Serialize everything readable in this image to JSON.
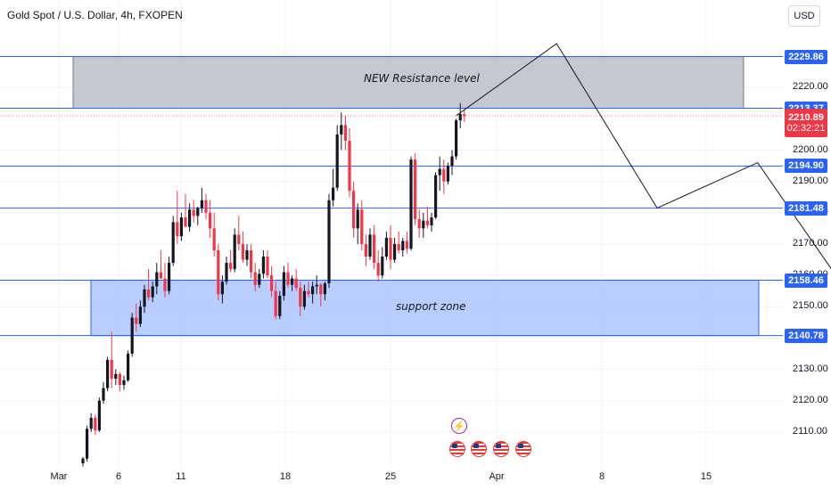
{
  "header": {
    "symbol_title": "Gold Spot / U.S. Dollar, 4h, FXOPEN",
    "currency": "USD"
  },
  "colors": {
    "up": "#131722",
    "down": "#f23645",
    "level_line": "#2962ff",
    "resistance_fill": "#b2b5be",
    "support_fill": "#a8c1ff",
    "current_price": "#f23645",
    "grid": "#f0f3fa"
  },
  "chart_data": {
    "type": "candlestick",
    "title": "Gold Spot / U.S. Dollar, 4h, FXOPEN",
    "ylim": [
      2100,
      2234
    ],
    "y_ticks": [
      "2110.00",
      "2120.00",
      "2130.00",
      "2140.00",
      "2150.00",
      "2160.00",
      "2170.00",
      "2180.00",
      "2190.00",
      "2200.00",
      "2220.00"
    ],
    "x_ticks": [
      "Mar",
      "6",
      "11",
      "18",
      "25",
      "Apr",
      "8",
      "15"
    ],
    "levels": [
      {
        "value": 2229.86,
        "label": "2229.86"
      },
      {
        "value": 2213.37,
        "label": "2213.37"
      },
      {
        "value": 2194.9,
        "label": "2194.90"
      },
      {
        "value": 2181.48,
        "label": "2181.48"
      },
      {
        "value": 2158.46,
        "label": "2158.46"
      },
      {
        "value": 2140.78,
        "label": "2140.78"
      }
    ],
    "current_price": {
      "value": 2210.89,
      "label": "2210.89",
      "countdown": "02:32:21"
    },
    "zones": [
      {
        "name": "NEW Resistance level",
        "from": 2213.37,
        "to": 2229.86
      },
      {
        "name": "support zone",
        "from": 2140.78,
        "to": 2158.46
      }
    ],
    "candles": [
      [
        2100.0,
        2102.0,
        2099.0,
        2101.5
      ],
      [
        2101.5,
        2112.0,
        2100.5,
        2111.0
      ],
      [
        2111.0,
        2116.0,
        2110.0,
        2114.5
      ],
      [
        2114.5,
        2115.5,
        2109.0,
        2110.5
      ],
      [
        2110.5,
        2121.0,
        2110.0,
        2120.0
      ],
      [
        2120.0,
        2126.0,
        2119.0,
        2124.0
      ],
      [
        2124.0,
        2134.0,
        2123.0,
        2133.0
      ],
      [
        2133.0,
        2142.0,
        2124.0,
        2127.0
      ],
      [
        2127.0,
        2130.0,
        2125.0,
        2128.5
      ],
      [
        2128.5,
        2129.0,
        2123.0,
        2125.0
      ],
      [
        2125.0,
        2128.0,
        2123.5,
        2126.5
      ],
      [
        2126.5,
        2136.0,
        2126.0,
        2135.0
      ],
      [
        2135.0,
        2148.0,
        2134.0,
        2146.5
      ],
      [
        2146.5,
        2151.0,
        2142.0,
        2144.5
      ],
      [
        2144.5,
        2152.0,
        2143.5,
        2150.0
      ],
      [
        2150.0,
        2157.0,
        2148.0,
        2155.5
      ],
      [
        2155.5,
        2162.0,
        2152.0,
        2153.0
      ],
      [
        2153.0,
        2158.0,
        2151.5,
        2156.5
      ],
      [
        2156.5,
        2164.0,
        2154.0,
        2161.0
      ],
      [
        2161.0,
        2168.0,
        2160.0,
        2159.0
      ],
      [
        2159.0,
        2164.0,
        2153.0,
        2155.0
      ],
      [
        2155.0,
        2166.0,
        2154.0,
        2164.0
      ],
      [
        2164.0,
        2179.0,
        2163.0,
        2177.0
      ],
      [
        2177.0,
        2187.0,
        2170.0,
        2172.5
      ],
      [
        2172.5,
        2180.0,
        2171.0,
        2178.5
      ],
      [
        2178.5,
        2186.0,
        2176.0,
        2175.5
      ],
      [
        2175.5,
        2183.0,
        2174.0,
        2181.0
      ],
      [
        2181.0,
        2184.0,
        2177.0,
        2179.0
      ],
      [
        2179.0,
        2182.0,
        2176.0,
        2181.5
      ],
      [
        2181.5,
        2188.0,
        2180.0,
        2184.0
      ],
      [
        2184.0,
        2186.0,
        2178.0,
        2180.0
      ],
      [
        2180.0,
        2184.0,
        2172.0,
        2175.0
      ],
      [
        2175.0,
        2180.0,
        2166.0,
        2168.0
      ],
      [
        2168.0,
        2170.0,
        2152.0,
        2154.0
      ],
      [
        2154.0,
        2160.0,
        2151.0,
        2158.0
      ],
      [
        2158.0,
        2166.0,
        2157.0,
        2164.0
      ],
      [
        2164.0,
        2168.0,
        2161.0,
        2162.0
      ],
      [
        2162.0,
        2175.0,
        2161.0,
        2173.0
      ],
      [
        2173.0,
        2179.0,
        2168.0,
        2170.0
      ],
      [
        2170.0,
        2174.0,
        2164.0,
        2165.0
      ],
      [
        2165.0,
        2170.0,
        2163.0,
        2168.0
      ],
      [
        2168.0,
        2170.0,
        2159.0,
        2161.0
      ],
      [
        2161.0,
        2164.0,
        2155.0,
        2157.0
      ],
      [
        2157.0,
        2162.0,
        2156.0,
        2160.5
      ],
      [
        2160.5,
        2168.0,
        2159.0,
        2166.0
      ],
      [
        2166.0,
        2168.0,
        2159.0,
        2160.0
      ],
      [
        2160.0,
        2163.0,
        2153.0,
        2155.0
      ],
      [
        2155.0,
        2158.0,
        2146.0,
        2147.0
      ],
      [
        2147.0,
        2155.0,
        2146.0,
        2153.5
      ],
      [
        2153.5,
        2163.0,
        2152.0,
        2161.0
      ],
      [
        2161.0,
        2164.0,
        2156.0,
        2157.0
      ],
      [
        2157.0,
        2160.0,
        2155.0,
        2159.0
      ],
      [
        2159.0,
        2162.0,
        2155.0,
        2156.0
      ],
      [
        2156.0,
        2158.0,
        2147.0,
        2150.0
      ],
      [
        2150.0,
        2157.0,
        2149.0,
        2155.0
      ],
      [
        2155.0,
        2158.0,
        2153.0,
        2154.0
      ],
      [
        2154.0,
        2158.0,
        2151.0,
        2156.5
      ],
      [
        2156.5,
        2160.0,
        2154.0,
        2157.0
      ],
      [
        2157.0,
        2157.5,
        2150.0,
        2154.0
      ],
      [
        2154.0,
        2158.0,
        2152.0,
        2157.5
      ],
      [
        2157.5,
        2186.0,
        2156.0,
        2184.0
      ],
      [
        2184.0,
        2194.0,
        2182.0,
        2188.0
      ],
      [
        2188.0,
        2208.0,
        2187.0,
        2205.0
      ],
      [
        2205.0,
        2212.0,
        2200.0,
        2208.0
      ],
      [
        2208.0,
        2211.0,
        2200.0,
        2203.0
      ],
      [
        2203.0,
        2207.0,
        2185.0,
        2187.0
      ],
      [
        2187.0,
        2190.0,
        2172.0,
        2175.0
      ],
      [
        2175.0,
        2183.0,
        2170.0,
        2181.0
      ],
      [
        2181.0,
        2184.0,
        2168.0,
        2170.0
      ],
      [
        2170.0,
        2173.0,
        2163.0,
        2166.0
      ],
      [
        2166.0,
        2175.0,
        2165.0,
        2173.0
      ],
      [
        2173.0,
        2176.0,
        2162.0,
        2164.0
      ],
      [
        2164.0,
        2168.0,
        2158.0,
        2160.0
      ],
      [
        2160.0,
        2169.0,
        2159.0,
        2166.0
      ],
      [
        2166.0,
        2174.0,
        2165.0,
        2172.0
      ],
      [
        2172.0,
        2176.0,
        2162.0,
        2165.0
      ],
      [
        2165.0,
        2172.0,
        2164.0,
        2170.0
      ],
      [
        2170.0,
        2174.0,
        2167.0,
        2168.0
      ],
      [
        2168.0,
        2172.0,
        2166.0,
        2171.0
      ],
      [
        2171.0,
        2174.0,
        2167.0,
        2168.5
      ],
      [
        2168.5,
        2198.0,
        2168.0,
        2197.0
      ],
      [
        2197.0,
        2199.0,
        2176.0,
        2178.0
      ],
      [
        2178.0,
        2181.0,
        2172.0,
        2175.0
      ],
      [
        2175.0,
        2180.0,
        2172.0,
        2177.5
      ],
      [
        2177.5,
        2182.0,
        2175.0,
        2176.0
      ],
      [
        2176.0,
        2180.0,
        2174.0,
        2178.5
      ],
      [
        2178.5,
        2193.0,
        2178.0,
        2192.0
      ],
      [
        2192.0,
        2198.0,
        2187.0,
        2194.0
      ],
      [
        2194.0,
        2197.0,
        2186.0,
        2190.0
      ],
      [
        2190.0,
        2196.0,
        2189.0,
        2195.0
      ],
      [
        2195.0,
        2200.0,
        2192.0,
        2198.0
      ],
      [
        2198.0,
        2210.0,
        2197.0,
        2209.5
      ],
      [
        2209.5,
        2215.0,
        2207.0,
        2211.5
      ],
      [
        2211.5,
        2213.0,
        2209.0,
        2210.89
      ]
    ],
    "projection": [
      {
        "candle": 91,
        "value": 2211.0
      },
      {
        "offset": 5,
        "value": 2234.0
      },
      {
        "offset": 10,
        "value": 2181.5
      },
      {
        "offset": 15,
        "value": 2196.0
      },
      {
        "offset": 21,
        "value": 2140.5
      }
    ]
  },
  "events": [
    {
      "icon": "flash-icon",
      "label": "⚡"
    },
    {
      "icon": "us-flag-icon"
    },
    {
      "icon": "us-flag-icon"
    },
    {
      "icon": "us-flag-icon"
    },
    {
      "icon": "us-flag-icon"
    }
  ]
}
